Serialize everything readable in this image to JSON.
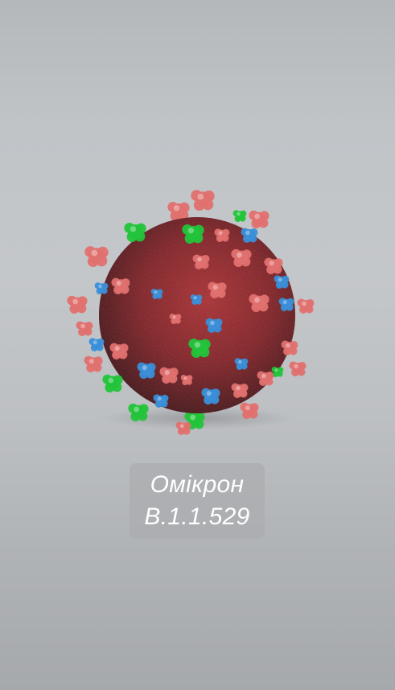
{
  "image": {
    "subject": "virus-particle",
    "colors": {
      "body": "#8a1d22",
      "spike_red": "#e0716f",
      "spike_blue": "#3a8fd8",
      "spike_green": "#22c43a",
      "background": "#bfc2c5"
    }
  },
  "caption": {
    "name": "Омікрон",
    "code": "B.1.1.529"
  }
}
